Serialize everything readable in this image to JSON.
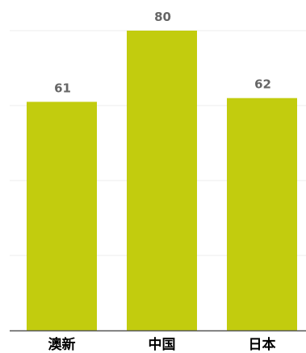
{
  "chart_data": {
    "type": "bar",
    "categories": [
      "澳新",
      "中国",
      "日本"
    ],
    "values": [
      61,
      80,
      62
    ],
    "ylim": [
      0,
      80
    ],
    "grid": true,
    "bar_color": "#c2cc0e",
    "value_label_color": "#666666",
    "category_label_color": "#000000",
    "gridline_color": "#eeeeee",
    "axis_color": "#555555"
  }
}
